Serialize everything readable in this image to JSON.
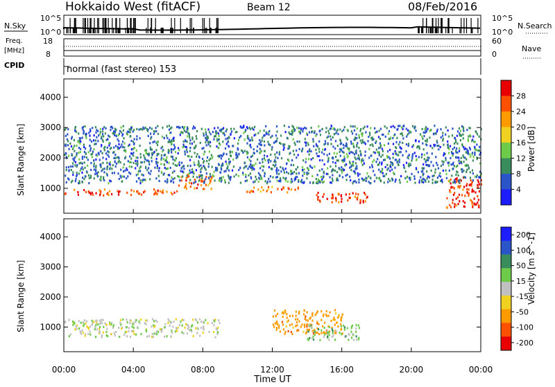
{
  "header": {
    "station": "Hokkaido West (fitACF)",
    "beam": "Beam 12",
    "date": "08/Feb/2016"
  },
  "noise_panel": {
    "left_label": "N.Sky",
    "right_label": "N.Search",
    "left_ticks": [
      "10^5",
      "10^0"
    ],
    "right_ticks": [
      "10^5",
      "10^0"
    ]
  },
  "freq_panel": {
    "label_line1": "Freq.",
    "label_line2": "[MHz]",
    "left_ticks": [
      "18",
      "8"
    ],
    "right_ticks": [
      "60",
      "0"
    ],
    "right_label": "Nave"
  },
  "cpid_panel": {
    "label": "CPID",
    "mode_text": "normal (fast stereo) 153"
  },
  "x_axis": {
    "label": "Time UT",
    "ticks": [
      "00:00",
      "04:00",
      "08:00",
      "12:00",
      "16:00",
      "20:00",
      "00:00"
    ]
  },
  "chart_data": [
    {
      "type": "heatmap",
      "title": "",
      "xlabel": "Time UT",
      "ylabel": "Slant Range [km]",
      "x_range_hours": [
        0,
        24
      ],
      "ylim": [
        180,
        4600
      ],
      "y_ticks": [
        1000,
        2000,
        3000,
        4000
      ],
      "colorbar": {
        "label": "Power [dB]",
        "range": [
          0,
          32
        ],
        "ticks": [
          "4",
          "8",
          "12",
          "16",
          "20",
          "24",
          "28"
        ],
        "colors": [
          "#1d1dff",
          "#2a55c8",
          "#3a8c5c",
          "#6ecb4a",
          "#f0d020",
          "#ff9a00",
          "#ff5000",
          "#e80000"
        ]
      },
      "features": [
        {
          "hours": [
            0,
            6.5
          ],
          "range_km": [
            800,
            1000
          ],
          "power_db": 26
        },
        {
          "hours": [
            6.5,
            8.5
          ],
          "range_km": [
            1000,
            1500
          ],
          "power_db": 24
        },
        {
          "hours": [
            10.5,
            13.5
          ],
          "range_km": [
            900,
            1100
          ],
          "power_db": 24
        },
        {
          "hours": [
            14.5,
            17.5
          ],
          "range_km": [
            550,
            900
          ],
          "power_db": 28
        },
        {
          "hours": [
            22,
            24
          ],
          "range_km": [
            400,
            1400
          ],
          "power_db": 28
        },
        {
          "hours": [
            0,
            24
          ],
          "range_km": [
            1200,
            3100
          ],
          "power_db": 8
        }
      ]
    },
    {
      "type": "heatmap",
      "title": "",
      "xlabel": "Time UT",
      "ylabel": "Slant Range [km]",
      "x_range_hours": [
        0,
        24
      ],
      "ylim": [
        180,
        4600
      ],
      "y_ticks": [
        1000,
        2000,
        3000,
        4000
      ],
      "colorbar": {
        "label": "Velocity [m s^-1]",
        "ticks": [
          "200",
          "100",
          "50",
          "15",
          "-15",
          "-50",
          "-100",
          "-200"
        ],
        "colors": [
          "#1d1dff",
          "#2a55c8",
          "#3a8c5c",
          "#6ecb4a",
          "#c0c0c0",
          "#f0d020",
          "#ff9a00",
          "#ff5000",
          "#e80000"
        ]
      },
      "features": [
        {
          "hours": [
            0,
            9
          ],
          "range_km": [
            700,
            1300
          ],
          "velocity_ms": 0
        },
        {
          "hours": [
            12,
            16
          ],
          "range_km": [
            800,
            1600
          ],
          "velocity_ms": -75
        },
        {
          "hours": [
            14,
            17
          ],
          "range_km": [
            600,
            1100
          ],
          "velocity_ms": 30
        }
      ]
    }
  ]
}
